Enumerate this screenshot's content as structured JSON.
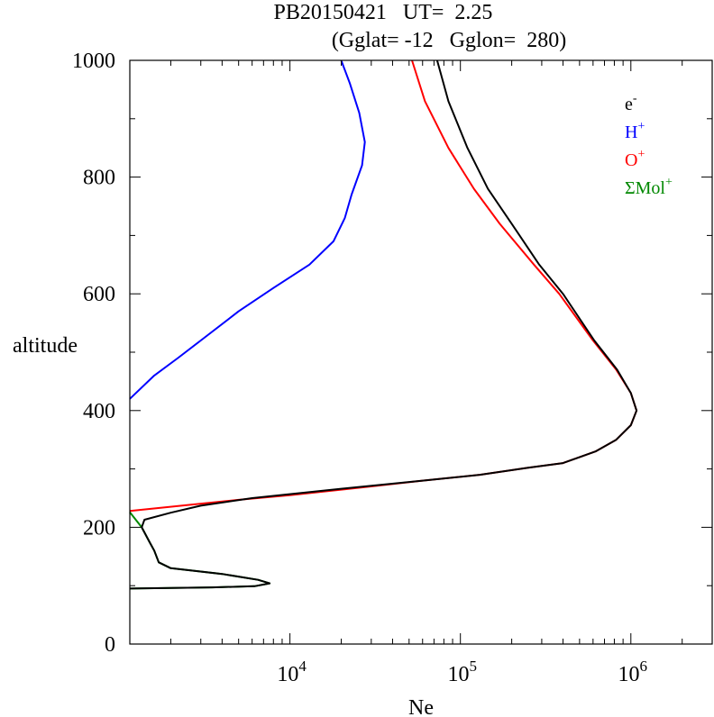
{
  "chart_data": {
    "type": "line",
    "title_line1": "PB20150421   UT=  2.25",
    "title_line2": "(Gglat= -12   Gglon=  280)",
    "xlabel": "Ne",
    "ylabel": "altitude",
    "xscale": "log",
    "xlim": [
      1150,
      3000000
    ],
    "ylim": [
      0,
      1000
    ],
    "y_ticks": [
      0,
      200,
      400,
      600,
      800,
      1000
    ],
    "x_tick_labels": [
      {
        "base": "10",
        "exp": "4",
        "value": 10000
      },
      {
        "base": "10",
        "exp": "5",
        "value": 100000
      },
      {
        "base": "10",
        "exp": "6",
        "value": 1000000
      }
    ],
    "legend_position": "top-right",
    "legend": [
      {
        "base": "e",
        "sup": "-",
        "color": "#000000"
      },
      {
        "base": "H",
        "sup": "+",
        "color": "#0000ff"
      },
      {
        "base": "O",
        "sup": "+",
        "color": "#ff0000"
      },
      {
        "base": "ΣMol",
        "sup": "+",
        "color": "#008800"
      }
    ],
    "series": [
      {
        "name": "H+",
        "color": "#0000ff",
        "points": [
          [
            1150,
            420
          ],
          [
            1600,
            460
          ],
          [
            2200,
            490
          ],
          [
            3000,
            520
          ],
          [
            5000,
            570
          ],
          [
            8000,
            610
          ],
          [
            13000,
            650
          ],
          [
            18000,
            690
          ],
          [
            21000,
            730
          ],
          [
            23000,
            770
          ],
          [
            26500,
            820
          ],
          [
            27500,
            860
          ],
          [
            25500,
            910
          ],
          [
            22500,
            960
          ],
          [
            20000,
            1000
          ]
        ]
      },
      {
        "name": "O+",
        "color": "#ff0000",
        "points": [
          [
            1150,
            228
          ],
          [
            5000,
            247
          ],
          [
            10000,
            255
          ],
          [
            30000,
            270
          ],
          [
            60000,
            280
          ],
          [
            130000,
            290
          ],
          [
            250000,
            302
          ],
          [
            400000,
            310
          ],
          [
            620000,
            330
          ],
          [
            820000,
            350
          ],
          [
            1000000,
            375
          ],
          [
            1080000,
            400
          ],
          [
            1000000,
            430
          ],
          [
            820000,
            470
          ],
          [
            600000,
            520
          ],
          [
            380000,
            600
          ],
          [
            270000,
            650
          ],
          [
            170000,
            720
          ],
          [
            120000,
            780
          ],
          [
            85000,
            850
          ],
          [
            62000,
            930
          ],
          [
            52000,
            1000
          ]
        ]
      },
      {
        "name": "ΣMol+",
        "color": "#008800",
        "points": [
          [
            1150,
            226
          ],
          [
            1350,
            200
          ],
          [
            1500,
            175
          ],
          [
            1600,
            160
          ],
          [
            1700,
            140
          ],
          [
            2000,
            130
          ],
          [
            4000,
            120
          ],
          [
            6500,
            110
          ],
          [
            7600,
            104
          ],
          [
            6200,
            99
          ],
          [
            3500,
            97
          ],
          [
            1150,
            95
          ]
        ]
      },
      {
        "name": "e-",
        "color": "#000000",
        "points": [
          [
            1150,
            95
          ],
          [
            3500,
            97
          ],
          [
            6200,
            99
          ],
          [
            7600,
            104
          ],
          [
            6500,
            110
          ],
          [
            4000,
            120
          ],
          [
            2000,
            130
          ],
          [
            1700,
            140
          ],
          [
            1600,
            160
          ],
          [
            1500,
            175
          ],
          [
            1350,
            200
          ],
          [
            1400,
            213
          ],
          [
            2000,
            225
          ],
          [
            3000,
            237
          ],
          [
            6000,
            250
          ],
          [
            20000,
            266
          ],
          [
            60000,
            280
          ],
          [
            130000,
            290
          ],
          [
            250000,
            302
          ],
          [
            400000,
            310
          ],
          [
            620000,
            330
          ],
          [
            820000,
            350
          ],
          [
            1000000,
            375
          ],
          [
            1080000,
            400
          ],
          [
            1000000,
            430
          ],
          [
            830000,
            470
          ],
          [
            610000,
            520
          ],
          [
            400000,
            600
          ],
          [
            290000,
            650
          ],
          [
            200000,
            720
          ],
          [
            145000,
            780
          ],
          [
            110000,
            850
          ],
          [
            85000,
            930
          ],
          [
            73000,
            1000
          ]
        ]
      }
    ]
  }
}
